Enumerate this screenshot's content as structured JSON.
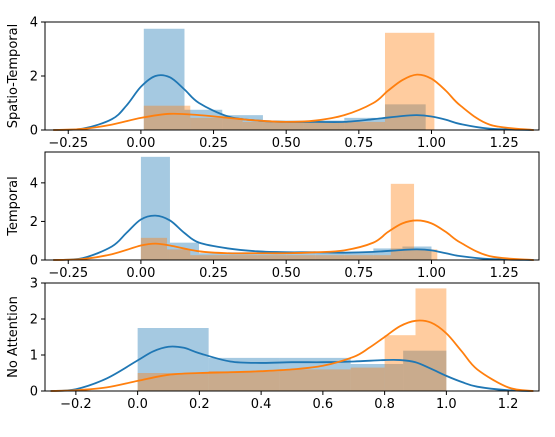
{
  "colors": {
    "blue": "#1f77b4",
    "orange": "#ff7f0e",
    "blue_bar": "#a6c8e1",
    "orange_bar": "#ffbf87"
  },
  "chart_data": [
    {
      "type": "histogram+kde",
      "ylabel": "Spatio-Temporal",
      "xlim": [
        -0.33,
        1.37
      ],
      "ylim": [
        0,
        4
      ],
      "xticks": [
        -0.25,
        0.0,
        0.25,
        0.5,
        0.75,
        1.0,
        1.25
      ],
      "xtick_labels": [
        "−0.25",
        "0.00",
        "0.25",
        "0.50",
        "0.75",
        "1.00",
        "1.25"
      ],
      "yticks": [
        0,
        2,
        4
      ],
      "series": [
        {
          "color_key": "blue",
          "bars": [
            {
              "x0": 0.01,
              "x1": 0.15,
              "h": 3.75
            },
            {
              "x0": 0.15,
              "x1": 0.28,
              "h": 0.75
            },
            {
              "x0": 0.28,
              "x1": 0.42,
              "h": 0.55
            },
            {
              "x0": 0.42,
              "x1": 0.56,
              "h": 0.35
            },
            {
              "x0": 0.56,
              "x1": 0.7,
              "h": 0.35
            },
            {
              "x0": 0.7,
              "x1": 0.84,
              "h": 0.45
            },
            {
              "x0": 0.84,
              "x1": 0.98,
              "h": 0.95
            }
          ],
          "kde": {
            "x": [
              -0.3,
              -0.2,
              -0.1,
              -0.05,
              0.0,
              0.05,
              0.1,
              0.15,
              0.2,
              0.3,
              0.4,
              0.5,
              0.6,
              0.7,
              0.8,
              0.9,
              0.95,
              1.0,
              1.05,
              1.1,
              1.2,
              1.35
            ],
            "y": [
              0.0,
              0.05,
              0.4,
              0.9,
              1.6,
              2.0,
              1.95,
              1.5,
              1.0,
              0.5,
              0.35,
              0.3,
              0.3,
              0.3,
              0.4,
              0.52,
              0.55,
              0.5,
              0.38,
              0.22,
              0.05,
              0.0
            ]
          }
        },
        {
          "color_key": "orange",
          "bars": [
            {
              "x0": 0.01,
              "x1": 0.17,
              "h": 0.9
            },
            {
              "x0": 0.17,
              "x1": 0.35,
              "h": 0.45
            },
            {
              "x0": 0.35,
              "x1": 0.51,
              "h": 0.3
            },
            {
              "x0": 0.51,
              "x1": 0.68,
              "h": 0.3
            },
            {
              "x0": 0.68,
              "x1": 0.84,
              "h": 0.3
            },
            {
              "x0": 0.84,
              "x1": 1.01,
              "h": 3.6
            }
          ],
          "kde": {
            "x": [
              -0.3,
              -0.2,
              -0.1,
              0.0,
              0.1,
              0.2,
              0.3,
              0.4,
              0.5,
              0.6,
              0.7,
              0.8,
              0.85,
              0.9,
              0.95,
              1.0,
              1.05,
              1.1,
              1.2,
              1.35
            ],
            "y": [
              0.0,
              0.04,
              0.2,
              0.45,
              0.6,
              0.55,
              0.45,
              0.35,
              0.3,
              0.35,
              0.55,
              1.0,
              1.45,
              1.85,
              2.05,
              1.9,
              1.45,
              0.9,
              0.2,
              0.0
            ]
          }
        }
      ]
    },
    {
      "type": "histogram+kde",
      "ylabel": "Temporal",
      "xlim": [
        -0.33,
        1.37
      ],
      "ylim": [
        0,
        5.6
      ],
      "xticks": [
        -0.25,
        0.0,
        0.25,
        0.5,
        0.75,
        1.0,
        1.25
      ],
      "xtick_labels": [
        "−0.25",
        "0.00",
        "0.25",
        "0.50",
        "0.75",
        "1.00",
        "1.25"
      ],
      "yticks": [
        0,
        2,
        4
      ],
      "series": [
        {
          "color_key": "blue",
          "bars": [
            {
              "x0": 0.0,
              "x1": 0.1,
              "h": 5.35
            },
            {
              "x0": 0.1,
              "x1": 0.2,
              "h": 0.9
            },
            {
              "x0": 0.2,
              "x1": 0.3,
              "h": 0.35
            },
            {
              "x0": 0.3,
              "x1": 0.4,
              "h": 0.4
            },
            {
              "x0": 0.4,
              "x1": 0.5,
              "h": 0.45
            },
            {
              "x0": 0.5,
              "x1": 0.6,
              "h": 0.45
            },
            {
              "x0": 0.6,
              "x1": 0.7,
              "h": 0.35
            },
            {
              "x0": 0.7,
              "x1": 0.8,
              "h": 0.4
            },
            {
              "x0": 0.8,
              "x1": 0.9,
              "h": 0.6
            },
            {
              "x0": 0.9,
              "x1": 1.0,
              "h": 0.7
            }
          ],
          "kde": {
            "x": [
              -0.3,
              -0.2,
              -0.1,
              -0.05,
              0.0,
              0.05,
              0.1,
              0.15,
              0.2,
              0.3,
              0.4,
              0.5,
              0.6,
              0.7,
              0.8,
              0.9,
              0.95,
              1.0,
              1.05,
              1.1,
              1.2,
              1.35
            ],
            "y": [
              0.0,
              0.1,
              0.7,
              1.4,
              2.1,
              2.3,
              2.05,
              1.4,
              0.9,
              0.6,
              0.45,
              0.4,
              0.4,
              0.38,
              0.42,
              0.52,
              0.55,
              0.5,
              0.35,
              0.2,
              0.05,
              0.0
            ]
          }
        },
        {
          "color_key": "orange",
          "bars": [
            {
              "x0": 0.0,
              "x1": 0.09,
              "h": 1.15
            },
            {
              "x0": 0.09,
              "x1": 0.17,
              "h": 0.55
            },
            {
              "x0": 0.17,
              "x1": 0.86,
              "h": 0.25
            },
            {
              "x0": 0.86,
              "x1": 0.94,
              "h": 3.95
            },
            {
              "x0": 0.94,
              "x1": 1.02,
              "h": 0.55
            }
          ],
          "kde": {
            "x": [
              -0.3,
              -0.2,
              -0.1,
              0.0,
              0.05,
              0.1,
              0.2,
              0.3,
              0.4,
              0.5,
              0.6,
              0.7,
              0.8,
              0.85,
              0.9,
              0.95,
              1.0,
              1.05,
              1.1,
              1.2,
              1.35
            ],
            "y": [
              0.0,
              0.05,
              0.3,
              0.75,
              0.85,
              0.75,
              0.45,
              0.35,
              0.35,
              0.35,
              0.4,
              0.5,
              0.9,
              1.45,
              1.9,
              2.05,
              1.9,
              1.45,
              0.9,
              0.2,
              0.0
            ]
          }
        }
      ]
    },
    {
      "type": "histogram+kde",
      "ylabel": "No Attention",
      "xlim": [
        -0.3,
        1.3
      ],
      "ylim": [
        0,
        3
      ],
      "xticks": [
        -0.2,
        0.0,
        0.2,
        0.4,
        0.6,
        0.8,
        1.0,
        1.2
      ],
      "xtick_labels": [
        "−0.2",
        "0.0",
        "0.2",
        "0.4",
        "0.6",
        "0.8",
        "1.0",
        "1.2"
      ],
      "yticks": [
        0,
        1,
        2,
        3
      ],
      "series": [
        {
          "color_key": "blue",
          "bars": [
            {
              "x0": 0.0,
              "x1": 0.23,
              "h": 1.75
            },
            {
              "x0": 0.23,
              "x1": 0.46,
              "h": 0.92
            },
            {
              "x0": 0.46,
              "x1": 0.69,
              "h": 0.92
            },
            {
              "x0": 0.69,
              "x1": 0.86,
              "h": 0.75
            },
            {
              "x0": 0.86,
              "x1": 1.0,
              "h": 1.12
            }
          ],
          "kde": {
            "x": [
              -0.28,
              -0.2,
              -0.1,
              0.0,
              0.05,
              0.1,
              0.15,
              0.2,
              0.3,
              0.4,
              0.5,
              0.6,
              0.7,
              0.8,
              0.85,
              0.9,
              0.95,
              1.0,
              1.05,
              1.1,
              1.2,
              1.28
            ],
            "y": [
              0.0,
              0.05,
              0.35,
              0.85,
              1.1,
              1.23,
              1.2,
              1.05,
              0.82,
              0.78,
              0.8,
              0.8,
              0.82,
              0.86,
              0.86,
              0.8,
              0.62,
              0.42,
              0.25,
              0.12,
              0.02,
              0.0
            ]
          }
        },
        {
          "color_key": "orange",
          "bars": [
            {
              "x0": 0.0,
              "x1": 0.23,
              "h": 0.5
            },
            {
              "x0": 0.23,
              "x1": 0.46,
              "h": 0.55
            },
            {
              "x0": 0.46,
              "x1": 0.69,
              "h": 0.6
            },
            {
              "x0": 0.69,
              "x1": 0.8,
              "h": 0.65
            },
            {
              "x0": 0.8,
              "x1": 0.9,
              "h": 1.55
            },
            {
              "x0": 0.9,
              "x1": 1.0,
              "h": 2.85
            }
          ],
          "kde": {
            "x": [
              -0.28,
              -0.2,
              -0.1,
              0.0,
              0.1,
              0.2,
              0.3,
              0.4,
              0.5,
              0.6,
              0.7,
              0.75,
              0.8,
              0.85,
              0.9,
              0.95,
              1.0,
              1.05,
              1.1,
              1.2,
              1.28
            ],
            "y": [
              0.0,
              0.02,
              0.1,
              0.28,
              0.45,
              0.5,
              0.52,
              0.55,
              0.6,
              0.7,
              0.95,
              1.2,
              1.5,
              1.8,
              1.95,
              1.9,
              1.6,
              1.1,
              0.6,
              0.1,
              0.0
            ]
          }
        }
      ]
    }
  ]
}
